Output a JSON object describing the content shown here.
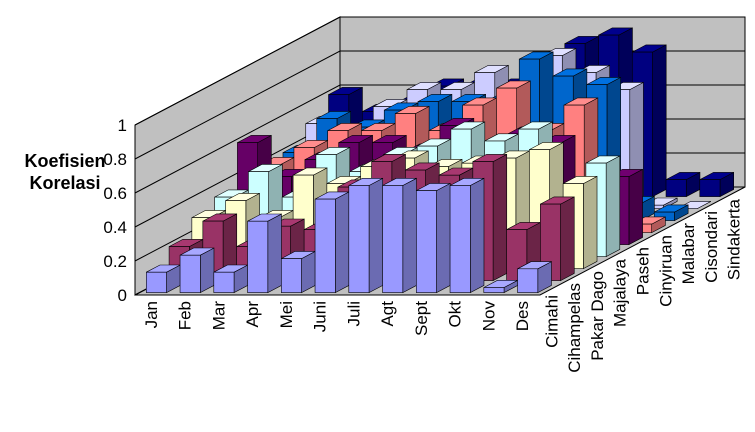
{
  "chart_data": {
    "type": "bar3d",
    "y_label": "Koefisien Korelasi",
    "categories": [
      "Jan",
      "Feb",
      "Mar",
      "Apr",
      "Mei",
      "Juni",
      "Juli",
      "Agt",
      "Sept",
      "Okt",
      "Nov",
      "Des"
    ],
    "series": [
      {
        "name": "Cimahi",
        "color": "#9999ff",
        "values": [
          0.12,
          0.22,
          0.12,
          0.42,
          0.2,
          0.55,
          0.63,
          0.63,
          0.6,
          0.63,
          0.03,
          0.14
        ]
      },
      {
        "name": "Cihampelas",
        "color": "#993366",
        "values": [
          0.2,
          0.35,
          0.2,
          0.32,
          0.3,
          0.55,
          0.7,
          0.65,
          0.62,
          0.7,
          0.3,
          0.45
        ]
      },
      {
        "name": "Pakar Dago",
        "color": "#ffffcc",
        "values": [
          0.3,
          0.4,
          0.3,
          0.55,
          0.5,
          0.6,
          0.65,
          0.6,
          0.62,
          0.65,
          0.7,
          0.5
        ]
      },
      {
        "name": "Majalaya",
        "color": "#ccffff",
        "values": [
          0.35,
          0.5,
          0.35,
          0.6,
          0.5,
          0.6,
          0.65,
          0.75,
          0.68,
          0.75,
          0.3,
          0.55
        ]
      },
      {
        "name": "Paseh",
        "color": "#660066",
        "values": [
          0.6,
          0.4,
          0.5,
          0.6,
          0.6,
          0.55,
          0.7,
          0.5,
          0.65,
          0.6,
          0.3,
          0.4
        ]
      },
      {
        "name": "Cinyiruan",
        "color": "#ff8080",
        "values": [
          0.4,
          0.5,
          0.6,
          0.6,
          0.7,
          0.6,
          0.75,
          0.85,
          0.6,
          0.75,
          0.0,
          0.05
        ]
      },
      {
        "name": "Malabar",
        "color": "#0066cc",
        "values": [
          0.4,
          0.6,
          0.55,
          0.65,
          0.7,
          0.7,
          0.7,
          0.95,
          0.85,
          0.8,
          0.1,
          0.05
        ]
      },
      {
        "name": "Cisondari",
        "color": "#ccccff",
        "values": [
          0.5,
          0.4,
          0.6,
          0.7,
          0.7,
          0.8,
          0.65,
          0.9,
          0.8,
          0.7,
          0.02,
          0.0
        ]
      },
      {
        "name": "Sindakerta",
        "color": "#000080",
        "values": [
          0.6,
          0.5,
          0.55,
          0.65,
          0.65,
          0.65,
          0.7,
          0.9,
          0.95,
          0.85,
          0.1,
          0.1
        ]
      }
    ],
    "ylim": [
      0,
      1
    ],
    "yticks": [
      0,
      0.2,
      0.4,
      0.6,
      0.8,
      1
    ],
    "grid": true
  }
}
